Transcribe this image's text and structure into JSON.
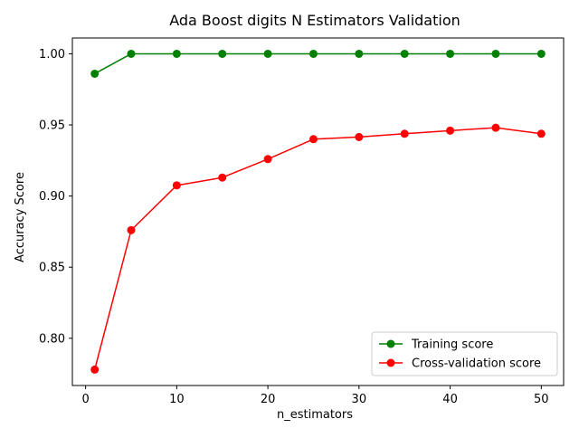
{
  "chart_data": {
    "type": "line",
    "title": "Ada Boost digits N Estimators Validation",
    "xlabel": "n_estimators",
    "ylabel": "Accuracy Score",
    "x": [
      1,
      5,
      10,
      15,
      20,
      25,
      30,
      35,
      40,
      45,
      50
    ],
    "xlim": [
      -1.45,
      52.45
    ],
    "ylim": [
      0.7668,
      1.0111
    ],
    "xticks": [
      0,
      10,
      20,
      30,
      40,
      50
    ],
    "xtick_labels": [
      "0",
      "10",
      "20",
      "30",
      "40",
      "50"
    ],
    "yticks": [
      0.8,
      0.85,
      0.9,
      0.95,
      1.0
    ],
    "ytick_labels": [
      "0.80",
      "0.85",
      "0.90",
      "0.95",
      "1.00"
    ],
    "grid": false,
    "legend_position": "lower-right",
    "series": [
      {
        "name": "Training score",
        "color": "#008000",
        "marker": "circle",
        "values": [
          0.986,
          1.0,
          1.0,
          1.0,
          1.0,
          1.0,
          1.0,
          1.0,
          1.0,
          1.0,
          1.0
        ]
      },
      {
        "name": "Cross-validation score",
        "color": "#ff0000",
        "marker": "circle",
        "values": [
          0.778,
          0.876,
          0.9075,
          0.913,
          0.926,
          0.94,
          0.9415,
          0.9438,
          0.946,
          0.948,
          0.9438
        ]
      }
    ]
  }
}
